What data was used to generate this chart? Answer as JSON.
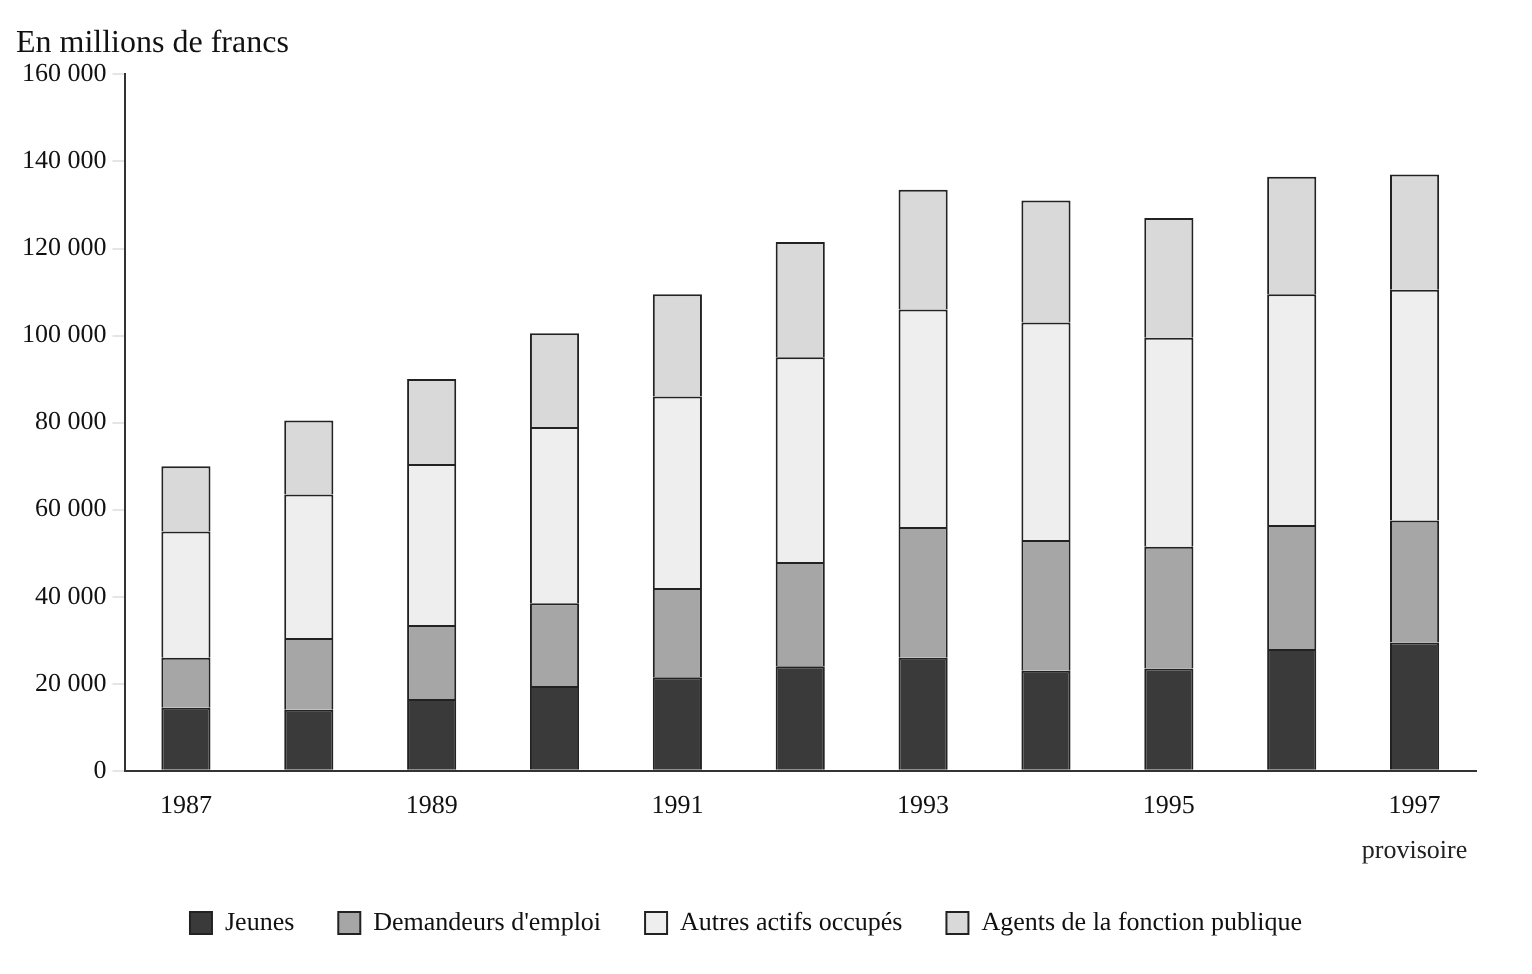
{
  "chart_data": {
    "type": "bar",
    "title": "En millions de francs",
    "stacked": true,
    "categories": [
      "1987",
      null,
      "1989",
      null,
      "1991",
      null,
      "1993",
      null,
      "1995",
      null,
      "1997"
    ],
    "series": [
      {
        "name": "Jeunes",
        "color": "#3a3a3a",
        "values": [
          14500,
          14000,
          16500,
          19500,
          21500,
          24000,
          26000,
          23000,
          23500,
          28000,
          29500
        ]
      },
      {
        "name": "Demandeurs d'emploi",
        "color": "#a6a6a6",
        "values": [
          11500,
          16500,
          17000,
          19000,
          20500,
          24000,
          30000,
          30000,
          28000,
          28500,
          28000
        ]
      },
      {
        "name": "Autres actifs occupés",
        "color": "#eeeeee",
        "values": [
          29000,
          33000,
          37000,
          40500,
          44000,
          47000,
          50000,
          50000,
          48000,
          53000,
          53000
        ]
      },
      {
        "name": "Agents de la fonction publique",
        "color": "#d9d9d9",
        "values": [
          15000,
          17000,
          19500,
          21500,
          23500,
          26500,
          27500,
          28000,
          27500,
          27000,
          26500
        ]
      }
    ],
    "ylim": [
      0,
      160000
    ],
    "yticks": [
      {
        "value": 0,
        "label": "0"
      },
      {
        "value": 20000,
        "label": "20 000"
      },
      {
        "value": 40000,
        "label": "40 000"
      },
      {
        "value": 60000,
        "label": "60 000"
      },
      {
        "value": 80000,
        "label": "80 000"
      },
      {
        "value": 100000,
        "label": "100 000"
      },
      {
        "value": 120000,
        "label": "120 000"
      },
      {
        "value": 140000,
        "label": "140 000"
      },
      {
        "value": 160000,
        "label": "160 000"
      }
    ],
    "annotations": [
      "provisoire"
    ],
    "grid": false,
    "legend": "bottom"
  }
}
